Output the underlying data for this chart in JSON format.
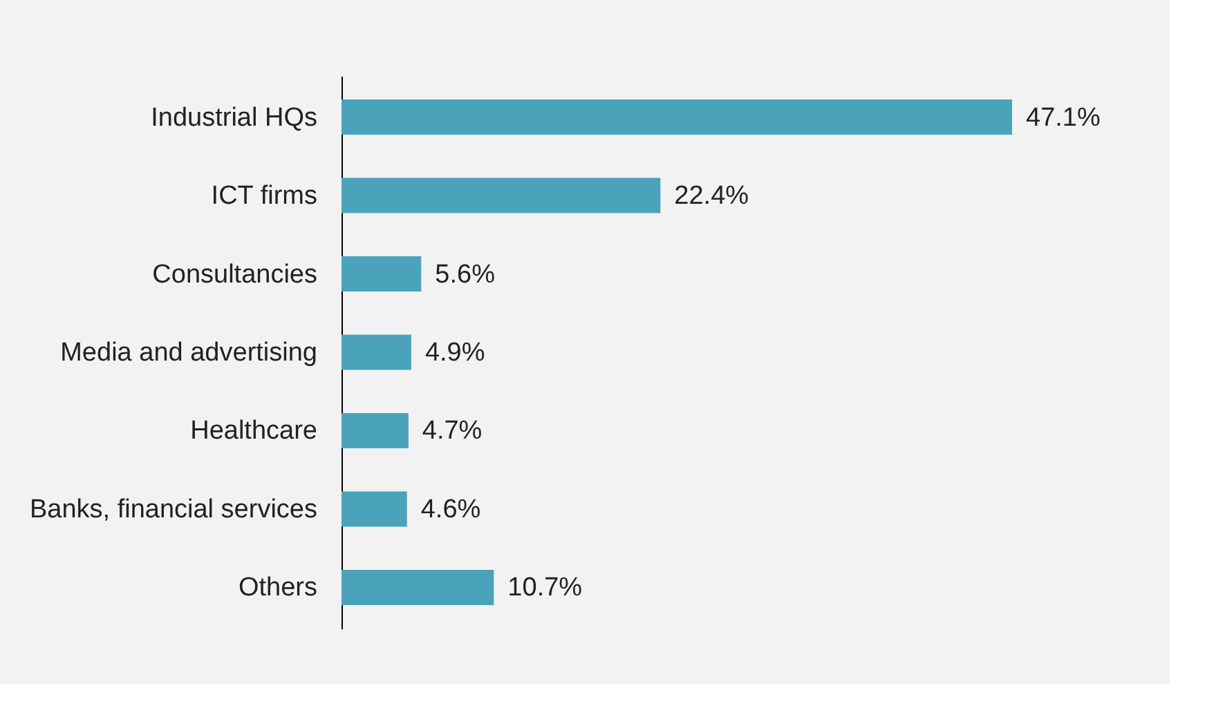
{
  "chart_data": {
    "type": "bar",
    "orientation": "horizontal",
    "categories": [
      "Industrial HQs",
      "ICT firms",
      "Consultancies",
      "Media and advertising",
      "Healthcare",
      "Banks, financial services",
      "Others"
    ],
    "values": [
      47.1,
      22.4,
      5.6,
      4.9,
      4.7,
      4.6,
      10.7
    ],
    "value_labels": [
      "47.1%",
      "22.4%",
      "5.6%",
      "4.9%",
      "4.7%",
      "4.6%",
      "10.7%"
    ],
    "color": "#4aa3bb"
  }
}
